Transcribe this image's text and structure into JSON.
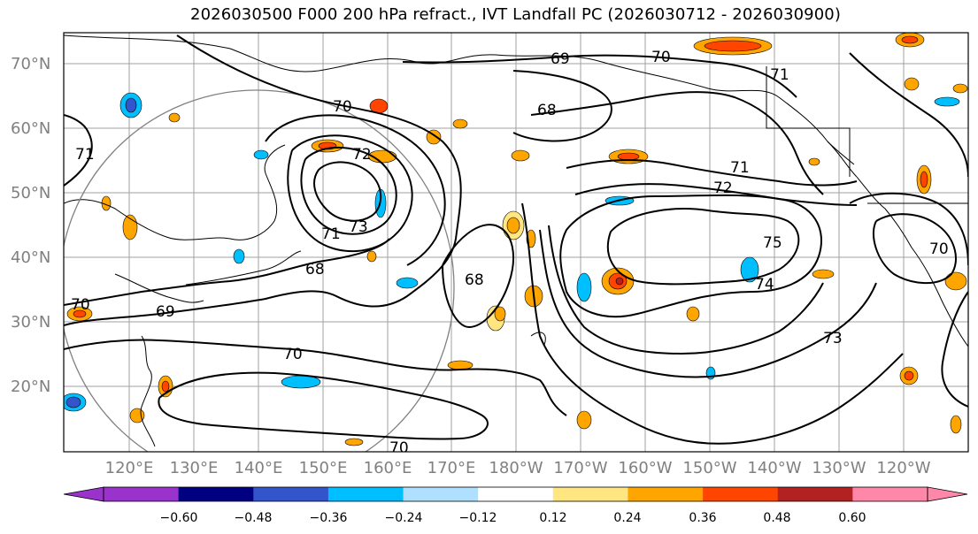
{
  "title": "2026030500 F000 200 hPa refract., IVT Landfall PC (2026030712 - 2026030900)",
  "lat_labels": [
    "70°N",
    "60°N",
    "50°N",
    "40°N",
    "30°N",
    "20°N"
  ],
  "lon_labels": [
    "120°E",
    "130°E",
    "140°E",
    "150°E",
    "160°E",
    "170°E",
    "180°W",
    "170°W",
    "160°W",
    "150°W",
    "140°W",
    "130°W",
    "120°W"
  ],
  "contour_labels": [
    "69",
    "70",
    "71",
    "68",
    "70",
    "72",
    "71",
    "73",
    "71",
    "72",
    "75",
    "74",
    "73",
    "68",
    "68",
    "69",
    "70",
    "70",
    "70",
    "70",
    "71"
  ],
  "colorbar": {
    "colors": [
      "#9933cc",
      "#000080",
      "#3355cc",
      "#00bfff",
      "#b0e0ff",
      "#ffffff",
      "#ffe680",
      "#ffa500",
      "#ff4500",
      "#b22222",
      "#ff88aa"
    ],
    "tick_labels": [
      "−0.60",
      "−0.48",
      "−0.36",
      "−0.24",
      "−0.12",
      "0.12",
      "0.24",
      "0.36",
      "0.48",
      "0.60"
    ]
  }
}
